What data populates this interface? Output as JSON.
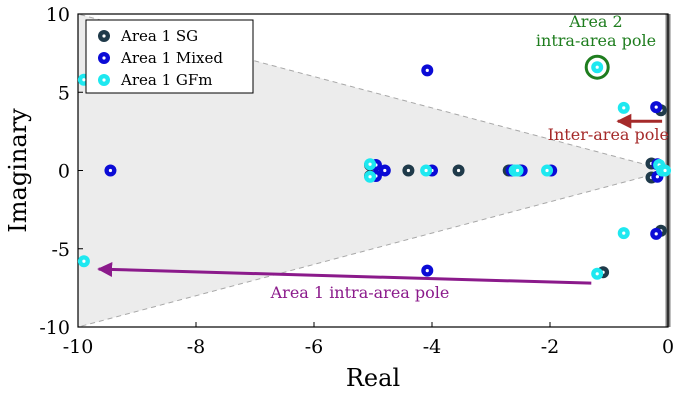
{
  "chart_data": {
    "type": "scatter",
    "xlabel": "Real",
    "ylabel": "Imaginary",
    "xlim": [
      -10,
      0
    ],
    "ylim": [
      -10,
      10
    ],
    "xticks": [
      "-10",
      "-8",
      "-6",
      "-4",
      "-2",
      "0"
    ],
    "yticks": [
      "10",
      "5",
      "0",
      "-5",
      "-10"
    ],
    "grid": false,
    "legend_position": "top-left",
    "shaded_region": {
      "description_vertices": [
        [
          0,
          0
        ],
        [
          -10,
          10
        ],
        [
          -10,
          -10
        ]
      ],
      "color": "#ececec"
    },
    "series": [
      {
        "name": "Area 1 SG",
        "color": "#1f3a4a",
        "points": [
          [
            -5.05,
            0.35
          ],
          [
            -5.05,
            -0.35
          ],
          [
            -4.4,
            0
          ],
          [
            -3.55,
            0
          ],
          [
            -2.7,
            0
          ],
          [
            -2.5,
            0
          ],
          [
            -1.1,
            -6.5
          ],
          [
            -0.28,
            0.45
          ],
          [
            -0.28,
            -0.45
          ],
          [
            -0.12,
            3.85
          ],
          [
            -0.12,
            -3.85
          ]
        ]
      },
      {
        "name": "Area 1 Mixed",
        "color": "#0b0bd6",
        "points": [
          [
            -9.45,
            0
          ],
          [
            -4.08,
            6.4
          ],
          [
            -4.08,
            -6.4
          ],
          [
            -4.95,
            0.35
          ],
          [
            -4.95,
            -0.35
          ],
          [
            -4.8,
            0
          ],
          [
            -4.0,
            0
          ],
          [
            -2.65,
            0
          ],
          [
            -2.48,
            0
          ],
          [
            -1.98,
            0
          ],
          [
            -0.2,
            4.05
          ],
          [
            -0.2,
            -4.05
          ],
          [
            -0.18,
            0.4
          ],
          [
            -0.18,
            -0.4
          ]
        ]
      },
      {
        "name": "Area 1 GFm",
        "color": "#1ee8f0",
        "points": [
          [
            -9.9,
            5.8
          ],
          [
            -9.9,
            -5.8
          ],
          [
            -1.2,
            6.6
          ],
          [
            -1.2,
            -6.6
          ],
          [
            -5.05,
            0.4
          ],
          [
            -5.05,
            -0.4
          ],
          [
            -4.1,
            0
          ],
          [
            -2.6,
            0
          ],
          [
            -2.55,
            0
          ],
          [
            -2.05,
            0
          ],
          [
            -0.75,
            4.0
          ],
          [
            -0.75,
            -4.0
          ],
          [
            -0.15,
            0.35
          ],
          [
            -0.1,
            0
          ],
          [
            -0.05,
            0
          ]
        ]
      }
    ],
    "annotations": [
      {
        "text_lines": [
          "Area 2",
          "intra-area pole"
        ],
        "color": "#1e7d1e",
        "target": [
          -1.2,
          6.6
        ]
      },
      {
        "text_lines": [
          "Inter-area pole"
        ],
        "color": "#a52a2a",
        "arrow_from": [
          -0.1,
          3.15
        ],
        "arrow_to": [
          -0.85,
          3.15
        ]
      },
      {
        "text_lines": [
          "Area 1 intra-area pole"
        ],
        "color": "#8b1a8b",
        "arrow_from": [
          -1.3,
          -7.2
        ],
        "arrow_to": [
          -9.65,
          -6.3
        ]
      }
    ]
  }
}
